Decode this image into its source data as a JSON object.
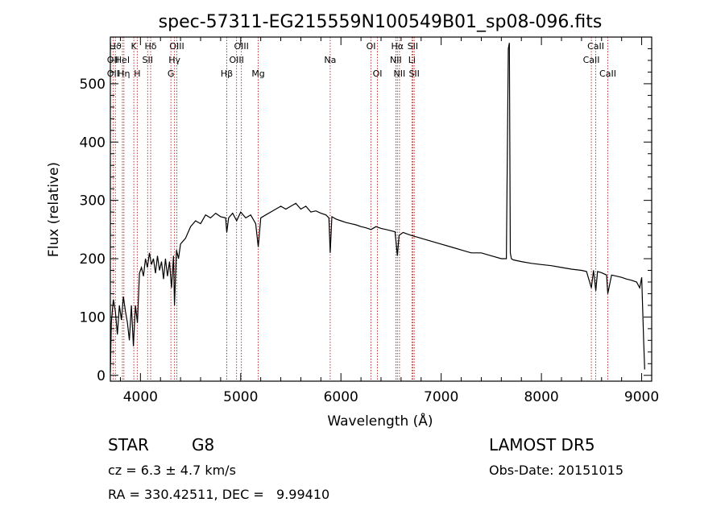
{
  "chart_data": {
    "type": "line",
    "title": "spec-57311-EG215559N100549B01_sp08-096.fits",
    "xlabel": "Wavelength (Å)",
    "ylabel": "Flux (relative)",
    "xlim": [
      3700,
      9100
    ],
    "ylim": [
      -10,
      580
    ],
    "xticks": [
      4000,
      5000,
      6000,
      7000,
      8000,
      9000
    ],
    "yticks": [
      0,
      100,
      200,
      300,
      400,
      500
    ],
    "grid": false,
    "series": [
      {
        "color": "#000000",
        "x": [
          3700,
          3710,
          3730,
          3750,
          3770,
          3790,
          3810,
          3830,
          3850,
          3870,
          3890,
          3910,
          3930,
          3950,
          3970,
          3990,
          4010,
          4030,
          4050,
          4070,
          4090,
          4110,
          4130,
          4150,
          4170,
          4190,
          4210,
          4230,
          4250,
          4270,
          4290,
          4310,
          4330,
          4340,
          4360,
          4380,
          4400,
          4450,
          4500,
          4550,
          4600,
          4650,
          4700,
          4750,
          4800,
          4850,
          4861,
          4880,
          4920,
          4960,
          5000,
          5050,
          5100,
          5150,
          5175,
          5200,
          5250,
          5300,
          5350,
          5400,
          5450,
          5500,
          5550,
          5600,
          5650,
          5700,
          5750,
          5800,
          5850,
          5880,
          5893,
          5910,
          5950,
          6000,
          6050,
          6100,
          6150,
          6200,
          6250,
          6300,
          6350,
          6400,
          6450,
          6500,
          6540,
          6563,
          6580,
          6620,
          6700,
          6800,
          6900,
          7000,
          7100,
          7200,
          7300,
          7400,
          7500,
          7600,
          7650,
          7670,
          7680,
          7690,
          7700,
          7720,
          7800,
          7900,
          8000,
          8100,
          8200,
          8300,
          8400,
          8450,
          8498,
          8520,
          8542,
          8560,
          8600,
          8650,
          8662,
          8700,
          8750,
          8800,
          8850,
          8900,
          8950,
          8980,
          9000,
          9020,
          9030
        ],
        "values": [
          5,
          90,
          130,
          110,
          70,
          120,
          95,
          135,
          110,
          90,
          60,
          120,
          50,
          120,
          90,
          175,
          185,
          170,
          200,
          185,
          210,
          190,
          200,
          175,
          205,
          180,
          195,
          165,
          200,
          170,
          195,
          150,
          205,
          120,
          215,
          200,
          225,
          235,
          255,
          265,
          260,
          275,
          270,
          278,
          272,
          270,
          245,
          270,
          278,
          265,
          280,
          270,
          275,
          260,
          220,
          270,
          275,
          280,
          285,
          290,
          285,
          290,
          295,
          285,
          290,
          280,
          282,
          278,
          275,
          270,
          210,
          272,
          268,
          265,
          262,
          260,
          258,
          255,
          253,
          250,
          255,
          252,
          250,
          248,
          246,
          205,
          240,
          245,
          240,
          235,
          230,
          225,
          220,
          215,
          210,
          210,
          205,
          200,
          200,
          560,
          570,
          210,
          200,
          198,
          195,
          192,
          190,
          188,
          185,
          182,
          180,
          178,
          150,
          180,
          145,
          178,
          176,
          172,
          140,
          172,
          170,
          168,
          165,
          163,
          160,
          150,
          168,
          60,
          10
        ]
      }
    ],
    "spectral_lines": [
      {
        "label": "Hϑ",
        "wavelength": 3750,
        "row": 1
      },
      {
        "label": "OII",
        "wavelength": 3727,
        "row": 2
      },
      {
        "label": "OII",
        "wavelength": 3727,
        "row": 3
      },
      {
        "label": "HeI",
        "wavelength": 3820,
        "row": 2
      },
      {
        "label": "Hη",
        "wavelength": 3835,
        "row": 3
      },
      {
        "label": "K",
        "wavelength": 3934,
        "row": 1
      },
      {
        "label": "H",
        "wavelength": 3968,
        "row": 3
      },
      {
        "label": "Hδ",
        "wavelength": 4102,
        "row": 1
      },
      {
        "label": "SII",
        "wavelength": 4072,
        "row": 2
      },
      {
        "label": "OIII",
        "wavelength": 4363,
        "row": 1
      },
      {
        "label": "Hγ",
        "wavelength": 4340,
        "row": 2
      },
      {
        "label": "G",
        "wavelength": 4304,
        "row": 3
      },
      {
        "label": "OIII",
        "wavelength": 5007,
        "row": 1
      },
      {
        "label": "OIII",
        "wavelength": 4959,
        "row": 2
      },
      {
        "label": "Hβ",
        "wavelength": 4861,
        "row": 3
      },
      {
        "label": "Mg",
        "wavelength": 5175,
        "row": 3
      },
      {
        "label": "Na",
        "wavelength": 5893,
        "row": 2
      },
      {
        "label": "OI",
        "wavelength": 6300,
        "row": 1
      },
      {
        "label": "OI",
        "wavelength": 6364,
        "row": 3
      },
      {
        "label": "Hα",
        "wavelength": 6563,
        "row": 1
      },
      {
        "label": "NII",
        "wavelength": 6548,
        "row": 2
      },
      {
        "label": "NII",
        "wavelength": 6584,
        "row": 3
      },
      {
        "label": "SII",
        "wavelength": 6717,
        "row": 1
      },
      {
        "label": "Li",
        "wavelength": 6708,
        "row": 2
      },
      {
        "label": "SII",
        "wavelength": 6731,
        "row": 3
      },
      {
        "label": "CaII",
        "wavelength": 8542,
        "row": 1
      },
      {
        "label": "CaII",
        "wavelength": 8498,
        "row": 2
      },
      {
        "label": "CaII",
        "wavelength": 8662,
        "row": 3
      }
    ],
    "line_marker_color": "#b22222"
  },
  "footer": {
    "object_class": "STAR",
    "subclass": "G8",
    "survey": "LAMOST DR5",
    "redshift_text": "cz = 6.3 ± 4.7 km/s",
    "obs_date_text": "Obs-Date: 20151015",
    "coords_text": "RA = 330.42511, DEC =   9.99410"
  }
}
